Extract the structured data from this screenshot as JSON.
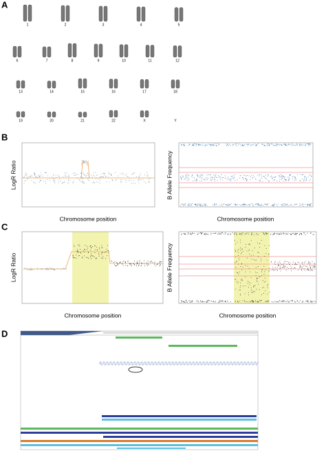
{
  "panels": [
    {
      "label": "A",
      "chromosomes": [
        "1",
        "2",
        "3",
        "4",
        "5",
        "6",
        "7",
        "8",
        "9",
        "10",
        "11",
        "12",
        "13",
        "14",
        "15",
        "16",
        "17",
        "18",
        "19",
        "20",
        "21",
        "22",
        "X",
        "Y"
      ]
    },
    {
      "label": "B",
      "left": {
        "y_label": "LogR Ratio",
        "x_label": "Chromosome position"
      },
      "right": {
        "y_label": "B Allele Frequency",
        "x_label": "Chromosome position"
      }
    },
    {
      "label": "C",
      "left": {
        "y_label": "LogR Ratio",
        "x_label": "Chromosome position"
      },
      "right": {
        "y_label": "B Allele Frequency",
        "x_label": "Chromosome position"
      }
    },
    {
      "label": "D"
    }
  ]
}
